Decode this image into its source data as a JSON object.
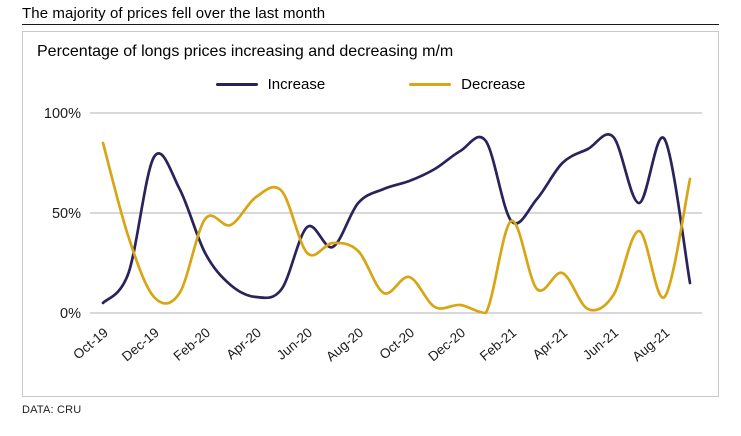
{
  "header": {
    "title": "The majority of prices fell over the last month"
  },
  "footer": {
    "source": "DATA: CRU"
  },
  "colors": {
    "increase": "#29235c",
    "decrease": "#d8a514",
    "grid": "#b0b0b0",
    "axis_text": "#1a1a1a"
  },
  "chart_data": {
    "type": "line",
    "title": "Percentage of longs prices increasing and decreasing m/m",
    "x": [
      "Oct-19",
      "Nov-19",
      "Dec-19",
      "Jan-20",
      "Feb-20",
      "Mar-20",
      "Apr-20",
      "May-20",
      "Jun-20",
      "Jul-20",
      "Aug-20",
      "Sep-20",
      "Oct-20",
      "Nov-20",
      "Dec-20",
      "Jan-21",
      "Feb-21",
      "Mar-21",
      "Apr-21",
      "May-21",
      "Jun-21",
      "Jul-21",
      "Aug-21",
      "Sep-21"
    ],
    "x_tick_step": 2,
    "series": [
      {
        "name": "Increase",
        "color": "#29235c",
        "values": [
          5,
          20,
          78,
          62,
          30,
          14,
          8,
          12,
          43,
          33,
          55,
          62,
          66,
          72,
          81,
          86,
          46,
          57,
          75,
          82,
          88,
          55,
          87,
          15
        ]
      },
      {
        "name": "Decrease",
        "color": "#d8a514",
        "values": [
          85,
          38,
          8,
          10,
          47,
          44,
          58,
          61,
          30,
          35,
          31,
          10,
          18,
          3,
          4,
          0,
          46,
          12,
          20,
          2,
          9,
          41,
          8,
          67
        ]
      }
    ],
    "ylim": [
      0,
      100
    ],
    "yticks": [
      0,
      50,
      100
    ],
    "ytick_labels": [
      "0%",
      "50%",
      "100%"
    ],
    "grid": true,
    "legend_position": "top"
  }
}
